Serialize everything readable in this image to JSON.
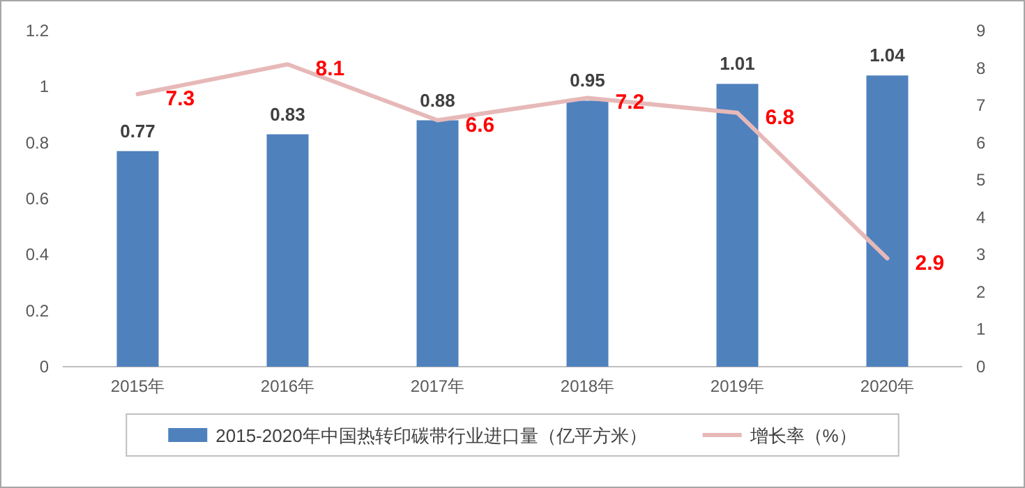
{
  "chart_data": {
    "type": "bar",
    "categories": [
      "2015年",
      "2016年",
      "2017年",
      "2018年",
      "2019年",
      "2020年"
    ],
    "series": [
      {
        "name": "2015-2020年中国热转印碳带行业进口量（亿平方米）",
        "color": "#4f81bd",
        "values": [
          0.77,
          0.83,
          0.88,
          0.95,
          1.01,
          1.04
        ]
      },
      {
        "name": "增长率（%）",
        "type": "line",
        "axis": "y2",
        "color": "#e6b9b8",
        "values": [
          7.3,
          8.1,
          6.6,
          7.2,
          6.8,
          2.9
        ]
      }
    ],
    "ylim": [
      0,
      1.2
    ],
    "yticks": [
      0,
      0.2,
      0.4,
      0.6,
      0.8,
      1,
      1.2
    ],
    "y2lim": [
      0,
      9
    ],
    "y2ticks": [
      0,
      1,
      2,
      3,
      4,
      5,
      6,
      7,
      8,
      9
    ],
    "data_labels": true,
    "legend": "bottom",
    "grid": false
  }
}
